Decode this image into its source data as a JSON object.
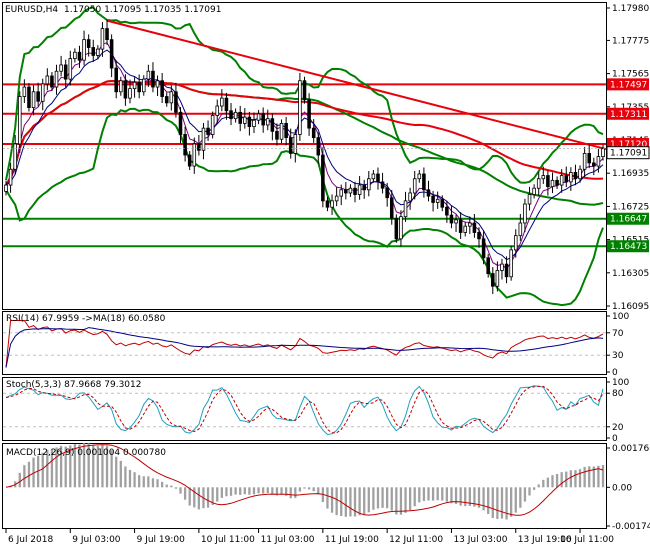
{
  "header": {
    "symbol": "EURUSD,H4",
    "ohlc": "1.17050 1.17095 1.17035 1.17091"
  },
  "panels": {
    "rsi_label": "RSI(14) 67.9959 ->MA(18) 60.0580",
    "stoch_label": "Stoch(5,3,3) 87.9668 79.3012",
    "macd_label": "MACD(12,26,9) 0.001004 0.000780"
  },
  "price_axis": {
    "ticks": [
      "1.17980",
      "1.17775",
      "1.17565",
      "1.17355",
      "1.17145",
      "1.16935",
      "1.16725",
      "1.16515",
      "1.16305",
      "1.16095"
    ],
    "current": "1.17091"
  },
  "levels": [
    {
      "label": "1.17497",
      "value": 1.17497,
      "color": "#e8000b"
    },
    {
      "label": "1.17311",
      "value": 1.17311,
      "color": "#e8000b"
    },
    {
      "label": "1.17120",
      "value": 1.1712,
      "color": "#e8000b"
    },
    {
      "label": "1.16647",
      "value": 1.16647,
      "color": "#008000"
    },
    {
      "label": "1.16473",
      "value": 1.16473,
      "color": "#008000"
    }
  ],
  "rsi_axis": [
    "100",
    "70",
    "30",
    "0"
  ],
  "stoch_axis": [
    "100",
    "80",
    "20",
    "0"
  ],
  "macd_axis": [
    "0.001768",
    "0.00",
    "-0.00174"
  ],
  "time_axis": [
    "6 Jul 2018",
    "9 Jul 03:00",
    "9 Jul 19:00",
    "10 Jul 11:00",
    "11 Jul 03:00",
    "11 Jul 19:00",
    "12 Jul 11:00",
    "13 Jul 03:00",
    "13 Jul 19:00",
    "16 Jul 11:00"
  ],
  "colors": {
    "bull": "#ffffff",
    "bear": "#000000",
    "bollinger": "#008000",
    "ma_slow": "#e8000b",
    "trendline": "#e8000b",
    "rsi": "#c00000",
    "rsi_ma": "#000080",
    "stoch_main": "#20a0c0",
    "stoch_signal": "#c00000",
    "macd_hist": "#a0a0a0",
    "macd_signal": "#c00000"
  },
  "chart_data": {
    "type": "candlestick",
    "closes": [
      1.1686,
      1.1696,
      1.1712,
      1.1742,
      1.1748,
      1.1735,
      1.1745,
      1.1739,
      1.175,
      1.1755,
      1.1748,
      1.1758,
      1.1762,
      1.1753,
      1.1766,
      1.177,
      1.1765,
      1.1778,
      1.1773,
      1.1768,
      1.1772,
      1.1785,
      1.1778,
      1.176,
      1.1745,
      1.1752,
      1.1741,
      1.1747,
      1.1751,
      1.1745,
      1.1753,
      1.1758,
      1.1748,
      1.1752,
      1.1742,
      1.1738,
      1.1745,
      1.1732,
      1.1718,
      1.1705,
      1.1698,
      1.1712,
      1.1708,
      1.1722,
      1.1718,
      1.173,
      1.1736,
      1.1741,
      1.1733,
      1.1728,
      1.1732,
      1.1725,
      1.1729,
      1.1723,
      1.1727,
      1.1731,
      1.1724,
      1.1728,
      1.172,
      1.1715,
      1.1725,
      1.1716,
      1.1706,
      1.1718,
      1.1752,
      1.174,
      1.1722,
      1.1716,
      1.1705,
      1.1676,
      1.1672,
      1.1676,
      1.1679,
      1.1683,
      1.1681,
      1.1684,
      1.168,
      1.1686,
      1.1683,
      1.169,
      1.1693,
      1.1688,
      1.1684,
      1.1678,
      1.1665,
      1.1652,
      1.1666,
      1.1676,
      1.1681,
      1.169,
      1.1693,
      1.1683,
      1.1679,
      1.1675,
      1.1677,
      1.1672,
      1.1667,
      1.1662,
      1.1664,
      1.1656,
      1.166,
      1.1662,
      1.1656,
      1.1652,
      1.164,
      1.163,
      1.1622,
      1.1632,
      1.1636,
      1.1628,
      1.1645,
      1.1654,
      1.1662,
      1.1674,
      1.168,
      1.1684,
      1.169,
      1.1692,
      1.1685,
      1.1689,
      1.1686,
      1.1692,
      1.1688,
      1.1694,
      1.169,
      1.1696,
      1.1706,
      1.17,
      1.1698,
      1.1704,
      1.1709
    ],
    "ylim": [
      1.16095,
      1.1798
    ],
    "lines": [
      {
        "from_index": 22,
        "from_value": 1.179,
        "to_index": 129,
        "to_value": 1.171
      }
    ],
    "rsi": {
      "ylim": [
        0,
        100
      ],
      "last": 67.9959,
      "ma_last": 60.058
    },
    "stochastic": {
      "ylim": [
        0,
        100
      ],
      "main_last": 87.9668,
      "signal_last": 79.3012
    },
    "macd": {
      "ylim": [
        -0.00174,
        0.001768
      ],
      "main_last": 0.001004,
      "signal_last": 0.00078
    }
  }
}
